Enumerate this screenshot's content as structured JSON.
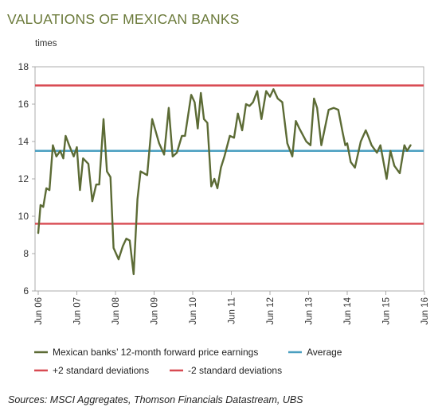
{
  "chart_data": {
    "type": "line",
    "title": "VALUATIONS OF MEXICAN BANKS",
    "ylabel": "times",
    "xlabel": "",
    "ylim": [
      6,
      18
    ],
    "yticks": [
      "6",
      "8",
      "10",
      "12",
      "14",
      "16",
      "18"
    ],
    "xticks": [
      "Jun 06",
      "Jun 07",
      "Jun 08",
      "Jun 09",
      "Jun 10",
      "Jun 11",
      "Jun 12",
      "Jun 13",
      "Jun 14",
      "Jun 15",
      "Jun 16"
    ],
    "grid": false,
    "legend_position": "bottom",
    "series": [
      {
        "name": "Mexican banks’ 12-month forward price earnings",
        "color": "#5c6b35",
        "x": [
          2006.5,
          2006.56,
          2006.63,
          2006.71,
          2006.79,
          2006.88,
          2006.97,
          2007.07,
          2007.15,
          2007.21,
          2007.3,
          2007.42,
          2007.5,
          2007.58,
          2007.66,
          2007.8,
          2007.9,
          2008.0,
          2008.08,
          2008.19,
          2008.28,
          2008.37,
          2008.45,
          2008.58,
          2008.69,
          2008.78,
          2008.87,
          2008.97,
          2009.07,
          2009.15,
          2009.32,
          2009.45,
          2009.63,
          2009.76,
          2009.88,
          2009.98,
          2010.09,
          2010.22,
          2010.3,
          2010.46,
          2010.55,
          2010.63,
          2010.71,
          2010.79,
          2010.88,
          2010.98,
          2011.06,
          2011.14,
          2011.23,
          2011.32,
          2011.46,
          2011.57,
          2011.67,
          2011.78,
          2011.88,
          2011.97,
          2012.06,
          2012.17,
          2012.28,
          2012.4,
          2012.5,
          2012.59,
          2012.7,
          2012.82,
          2012.95,
          2013.08,
          2013.17,
          2013.26,
          2013.44,
          2013.55,
          2013.64,
          2013.72,
          2013.83,
          2014.02,
          2014.15,
          2014.27,
          2014.38,
          2014.45,
          2014.5,
          2014.59,
          2014.7,
          2014.85,
          2014.98,
          2015.04,
          2015.13,
          2015.27,
          2015.36,
          2015.52,
          2015.62,
          2015.72,
          2015.86,
          2015.98,
          2016.05,
          2016.14
        ],
        "values": [
          9.1,
          10.6,
          10.5,
          11.5,
          11.4,
          13.8,
          13.2,
          13.5,
          13.1,
          14.3,
          13.8,
          13.2,
          13.7,
          11.4,
          13.1,
          12.8,
          10.8,
          11.7,
          11.7,
          15.2,
          12.4,
          12.1,
          8.3,
          7.7,
          8.4,
          8.8,
          8.7,
          6.9,
          10.9,
          12.4,
          12.2,
          15.2,
          13.9,
          13.3,
          15.8,
          13.2,
          13.4,
          14.3,
          14.3,
          16.5,
          16.1,
          14.7,
          16.6,
          15.2,
          15.0,
          11.6,
          12.0,
          11.5,
          12.6,
          13.2,
          14.3,
          14.2,
          15.5,
          14.6,
          16.0,
          15.9,
          16.1,
          16.7,
          15.2,
          16.7,
          16.4,
          16.8,
          16.3,
          16.1,
          13.9,
          13.2,
          15.1,
          14.7,
          14.0,
          13.8,
          16.3,
          15.8,
          13.8,
          15.7,
          15.8,
          15.7,
          14.5,
          13.8,
          13.9,
          12.9,
          12.6,
          14.0,
          14.6,
          14.3,
          13.8,
          13.4,
          13.8,
          12.0,
          13.5,
          12.7,
          12.3,
          13.8,
          13.5,
          13.8
        ]
      },
      {
        "name": "Average",
        "color": "#4a9fc0",
        "values": [
          13.5
        ]
      },
      {
        "name": "+2 standard deviations",
        "color": "#d84a52",
        "values": [
          17.0
        ]
      },
      {
        "name": "-2 standard deviations",
        "color": "#d84a52",
        "values": [
          9.6
        ]
      }
    ]
  },
  "source": "Sources: MSCI Aggregates, Thomson Financials Datastream, UBS"
}
